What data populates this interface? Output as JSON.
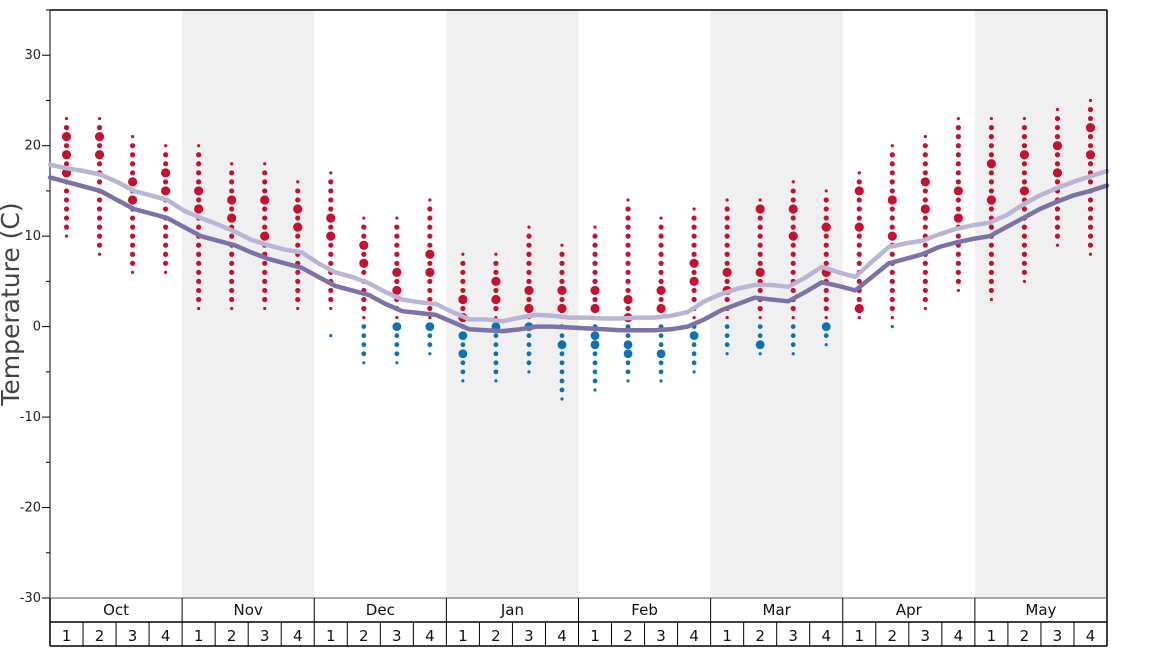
{
  "chart_data": {
    "type": "scatter",
    "ylabel": "Temperature (C)",
    "ylim": [
      -30,
      35
    ],
    "yticks": [
      30,
      20,
      10,
      0,
      -10,
      -20,
      -30
    ],
    "months": [
      "Oct",
      "Nov",
      "Dec",
      "Jan",
      "Feb",
      "Mar",
      "Apr",
      "May"
    ],
    "weeks": [
      "1",
      "2",
      "3",
      "4"
    ],
    "shaded_months": [
      "Nov",
      "Jan",
      "Mar",
      "May"
    ],
    "colors": {
      "warm": "#c8102e",
      "cold": "#0a72b8",
      "line_dark": "#7a72a8",
      "line_light": "#b9b5d5",
      "shade": "#f0f0f0"
    },
    "series": [
      {
        "name": "",
        "values": [
          16.5,
          16,
          15.5,
          15,
          14,
          13,
          12.5,
          12,
          11,
          10,
          9.5,
          9,
          8.2,
          7.5,
          7,
          6.5,
          5.5,
          4.5,
          4,
          3.5,
          2.5,
          1.7,
          1.5,
          1.3,
          0.5,
          -0.3,
          -0.4,
          -0.5,
          -0.3,
          0,
          0,
          -0.1,
          -0.2,
          -0.3,
          -0.4,
          -0.4,
          -0.4,
          -0.3,
          0,
          0.8,
          1.8,
          2.5,
          3.2,
          3,
          2.8,
          3.8,
          4.9,
          4.5,
          4,
          5.5,
          7,
          7.5,
          8,
          8.8,
          9.3,
          9.7,
          10,
          11,
          12,
          13,
          13.8,
          14.5,
          15,
          15.6
        ]
      },
      {
        "name": "",
        "values": [
          17.9,
          17.5,
          17.2,
          16.8,
          16,
          15,
          14.5,
          14,
          12.8,
          12,
          11.3,
          10.5,
          9.6,
          9,
          8.5,
          8.2,
          7,
          6,
          5.5,
          4.8,
          3.8,
          3,
          2.7,
          2.5,
          1.6,
          0.8,
          0.8,
          0.6,
          1,
          1.3,
          1.2,
          1,
          1,
          0.9,
          0.9,
          1,
          1,
          1.2,
          1.6,
          2.8,
          3.6,
          4.2,
          4.6,
          4.6,
          4.4,
          5.4,
          6.6,
          6,
          5.5,
          7.2,
          8.8,
          9.2,
          9.5,
          10.2,
          10.8,
          11.2,
          11.5,
          12.3,
          13.5,
          14.5,
          15.3,
          16,
          16.6,
          17.2
        ]
      }
    ],
    "dots": [
      {
        "min": 10,
        "max": 23,
        "big": [
          19,
          21,
          17
        ],
        "cold_min": null,
        "cold_max": null,
        "cold_big": []
      },
      {
        "min": 8,
        "max": 23,
        "big": [
          19,
          21
        ],
        "cold_min": null,
        "cold_max": null,
        "cold_big": []
      },
      {
        "min": 6,
        "max": 21,
        "big": [
          16,
          14
        ],
        "cold_min": null,
        "cold_max": null,
        "cold_big": []
      },
      {
        "min": 6,
        "max": 20,
        "big": [
          17,
          15
        ],
        "cold_min": null,
        "cold_max": null,
        "cold_big": []
      },
      {
        "min": 2,
        "max": 20,
        "big": [
          15,
          13
        ],
        "cold_min": null,
        "cold_max": null,
        "cold_big": []
      },
      {
        "min": 2,
        "max": 18,
        "big": [
          14,
          12
        ],
        "cold_min": null,
        "cold_max": null,
        "cold_big": []
      },
      {
        "min": 2,
        "max": 18,
        "big": [
          14,
          10
        ],
        "cold_min": null,
        "cold_max": null,
        "cold_big": []
      },
      {
        "min": 2,
        "max": 16,
        "big": [
          13,
          11
        ],
        "cold_min": null,
        "cold_max": null,
        "cold_big": []
      },
      {
        "min": 2,
        "max": 17,
        "big": [
          12,
          10
        ],
        "cold_min": -1,
        "cold_max": -1,
        "cold_big": []
      },
      {
        "min": 1,
        "max": 12,
        "big": [
          9,
          7
        ],
        "cold_min": -4,
        "cold_max": 0,
        "cold_big": []
      },
      {
        "min": 1,
        "max": 12,
        "big": [
          6,
          4
        ],
        "cold_min": -4,
        "cold_max": 0,
        "cold_big": [
          0
        ]
      },
      {
        "min": 1,
        "max": 14,
        "big": [
          8,
          6
        ],
        "cold_min": -3,
        "cold_max": 0,
        "cold_big": [
          0
        ]
      },
      {
        "min": 1,
        "max": 8,
        "big": [
          3,
          1
        ],
        "cold_min": -6,
        "cold_max": 0,
        "cold_big": [
          -1,
          -3
        ]
      },
      {
        "min": 1,
        "max": 8,
        "big": [
          5,
          3
        ],
        "cold_min": -6,
        "cold_max": 0,
        "cold_big": [
          0
        ]
      },
      {
        "min": 1,
        "max": 11,
        "big": [
          4,
          2
        ],
        "cold_min": -5,
        "cold_max": 0,
        "cold_big": [
          0
        ]
      },
      {
        "min": 1,
        "max": 9,
        "big": [
          4,
          2
        ],
        "cold_min": -8,
        "cold_max": 0,
        "cold_big": [
          -2
        ]
      },
      {
        "min": 1,
        "max": 11,
        "big": [
          4,
          2
        ],
        "cold_min": -7,
        "cold_max": 0,
        "cold_big": [
          -2,
          -1
        ]
      },
      {
        "min": 1,
        "max": 14,
        "big": [
          3,
          1
        ],
        "cold_min": -6,
        "cold_max": 0,
        "cold_big": [
          -2,
          -3
        ]
      },
      {
        "min": 1,
        "max": 12,
        "big": [
          4,
          2
        ],
        "cold_min": -6,
        "cold_max": 0,
        "cold_big": [
          -3
        ]
      },
      {
        "min": 1,
        "max": 13,
        "big": [
          7,
          5
        ],
        "cold_min": -5,
        "cold_max": 0,
        "cold_big": [
          -1
        ]
      },
      {
        "min": 1,
        "max": 14,
        "big": [
          6,
          4
        ],
        "cold_min": -3,
        "cold_max": 0,
        "cold_big": []
      },
      {
        "min": 1,
        "max": 14,
        "big": [
          13,
          6
        ],
        "cold_min": -3,
        "cold_max": 0,
        "cold_big": [
          -2
        ]
      },
      {
        "min": 1,
        "max": 16,
        "big": [
          13,
          10
        ],
        "cold_min": -3,
        "cold_max": 0,
        "cold_big": []
      },
      {
        "min": 1,
        "max": 15,
        "big": [
          11,
          6
        ],
        "cold_min": -2,
        "cold_max": 0,
        "cold_big": [
          0
        ]
      },
      {
        "min": 1,
        "max": 17,
        "big": [
          15,
          11,
          2
        ],
        "cold_min": null,
        "cold_max": null,
        "cold_big": []
      },
      {
        "min": 1,
        "max": 20,
        "big": [
          14,
          10
        ],
        "cold_min": 0,
        "cold_max": 0,
        "cold_big": []
      },
      {
        "min": 2,
        "max": 21,
        "big": [
          16,
          13
        ],
        "cold_min": null,
        "cold_max": null,
        "cold_big": []
      },
      {
        "min": 4,
        "max": 23,
        "big": [
          15,
          12
        ],
        "cold_min": null,
        "cold_max": null,
        "cold_big": []
      },
      {
        "min": 3,
        "max": 23,
        "big": [
          18,
          14
        ],
        "cold_min": null,
        "cold_max": null,
        "cold_big": []
      },
      {
        "min": 5,
        "max": 23,
        "big": [
          19,
          15
        ],
        "cold_min": null,
        "cold_max": null,
        "cold_big": []
      },
      {
        "min": 9,
        "max": 24,
        "big": [
          20,
          17
        ],
        "cold_min": null,
        "cold_max": null,
        "cold_big": []
      },
      {
        "min": 8,
        "max": 25,
        "big": [
          22,
          19
        ],
        "cold_min": null,
        "cold_max": null,
        "cold_big": []
      }
    ]
  }
}
